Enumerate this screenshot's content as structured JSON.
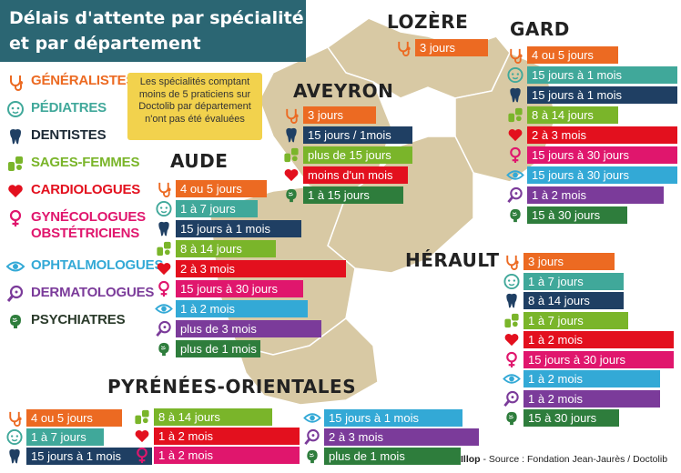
{
  "title": {
    "line1": "Délais d'attente par spécialité",
    "line2": "et par département"
  },
  "colors": {
    "generalistes": "#ec6a22",
    "pediatres": "#40a89a",
    "dentistes": "#1f3f63",
    "sages_femmes": "#7ab52a",
    "cardiologues": "#e3101e",
    "gynecologues": "#e0166d",
    "ophtalmologues": "#33a9d6",
    "dermatologues": "#7b3b9a",
    "psychiatres": "#2e7d3c",
    "map_land": "#d8c9a4",
    "map_border": "#ffffff",
    "title_bg": "#2b6673",
    "note_bg": "#f2d24d"
  },
  "legend": [
    {
      "label": "GÉNÉRALISTES",
      "spec": "generalistes",
      "icon": "stethoscope-icon"
    },
    {
      "label": "PÉDIATRES",
      "spec": "pediatres",
      "icon": "baby-face-icon"
    },
    {
      "label": "DENTISTES",
      "spec": "dentistes",
      "icon": "tooth-icon"
    },
    {
      "label": "SAGES-FEMMES",
      "spec": "sages_femmes",
      "icon": "baby-hands-icon"
    },
    {
      "label": "CARDIOLOGUES",
      "spec": "cardiologues",
      "icon": "heart-icon"
    },
    {
      "label": "GYNÉCOLOGUES",
      "label2": "OBSTÉTRICIENS",
      "spec": "gynecologues",
      "icon": "female-symbol-icon"
    },
    {
      "label": "OPHTALMOLOGUES",
      "spec": "ophtalmologues",
      "icon": "eye-icon"
    },
    {
      "label": "DERMATOLOGUES",
      "spec": "dermatologues",
      "icon": "magnifier-icon"
    },
    {
      "label": "PSYCHIATRES",
      "spec": "psychiatres",
      "icon": "brain-icon"
    }
  ],
  "note": "Les spécialités comptant moins de 5 praticiens sur Doctolib par département n'ont pas été évaluées",
  "departments": [
    {
      "name": "LOZÈRE",
      "rows": [
        {
          "spec": "generalistes",
          "text": "3 jours"
        }
      ]
    },
    {
      "name": "GARD",
      "rows": [
        {
          "spec": "generalistes",
          "text": "4 ou 5 jours"
        },
        {
          "spec": "pediatres",
          "text": "15 jours à 1 mois"
        },
        {
          "spec": "dentistes",
          "text": "15 jours à 1 mois"
        },
        {
          "spec": "sages_femmes",
          "text": "8 à 14 jours"
        },
        {
          "spec": "cardiologues",
          "text": "2 à 3 mois"
        },
        {
          "spec": "gynecologues",
          "text": "15 jours à 30 jours"
        },
        {
          "spec": "ophtalmologues",
          "text": "15 jours à 30 jours"
        },
        {
          "spec": "dermatologues",
          "text": "1 à 2 mois"
        },
        {
          "spec": "psychiatres",
          "text": "15 à 30 jours"
        }
      ]
    },
    {
      "name": "AVEYRON",
      "rows": [
        {
          "spec": "generalistes",
          "text": "3 jours"
        },
        {
          "spec": "dentistes",
          "text": "15 jours / 1mois"
        },
        {
          "spec": "sages_femmes",
          "text": "plus de 15 jours"
        },
        {
          "spec": "cardiologues",
          "text": "moins d'un mois"
        },
        {
          "spec": "psychiatres",
          "text": "1 à 15 jours"
        }
      ]
    },
    {
      "name": "AUDE",
      "rows": [
        {
          "spec": "generalistes",
          "text": "4 ou 5 jours"
        },
        {
          "spec": "pediatres",
          "text": "1 à 7 jours"
        },
        {
          "spec": "dentistes",
          "text": "15 jours à 1 mois"
        },
        {
          "spec": "sages_femmes",
          "text": "8 à 14 jours"
        },
        {
          "spec": "cardiologues",
          "text": "2 à 3 mois"
        },
        {
          "spec": "gynecologues",
          "text": "15 jours à 30 jours"
        },
        {
          "spec": "ophtalmologues",
          "text": "1 à 2 mois"
        },
        {
          "spec": "dermatologues",
          "text": "plus de 3 mois"
        },
        {
          "spec": "psychiatres",
          "text": "plus de 1 mois"
        }
      ]
    },
    {
      "name": "HÉRAULT",
      "rows": [
        {
          "spec": "generalistes",
          "text": "3 jours"
        },
        {
          "spec": "pediatres",
          "text": "1 à 7 jours"
        },
        {
          "spec": "dentistes",
          "text": "8 à 14 jours"
        },
        {
          "spec": "sages_femmes",
          "text": "1 à 7 jours"
        },
        {
          "spec": "cardiologues",
          "text": "1 à 2 mois"
        },
        {
          "spec": "gynecologues",
          "text": "15 jours à 30 jours"
        },
        {
          "spec": "ophtalmologues",
          "text": "1 à 2 mois"
        },
        {
          "spec": "dermatologues",
          "text": "1 à 2 mois"
        },
        {
          "spec": "psychiatres",
          "text": "15 à 30 jours"
        }
      ]
    },
    {
      "name": "PYRÉNÉES-ORIENTALES",
      "rows": [
        {
          "spec": "generalistes",
          "text": "4 ou 5 jours"
        },
        {
          "spec": "pediatres",
          "text": "1 à 7 jours"
        },
        {
          "spec": "dentistes",
          "text": "15 jours à 1 mois"
        },
        {
          "spec": "sages_femmes",
          "text": "8 à 14 jours"
        },
        {
          "spec": "cardiologues",
          "text": "1 à 2 mois"
        },
        {
          "spec": "gynecologues",
          "text": "1 à 2 mois"
        },
        {
          "spec": "ophtalmologues",
          "text": "15 jours à 1 mois"
        },
        {
          "spec": "dermatologues",
          "text": "2 à 3 mois"
        },
        {
          "spec": "psychiatres",
          "text": "plus de 1 mois"
        }
      ]
    }
  ],
  "source": {
    "logo": "Illop",
    "text": " - Source : Fondation Jean-Jaurès / Doctolib"
  }
}
